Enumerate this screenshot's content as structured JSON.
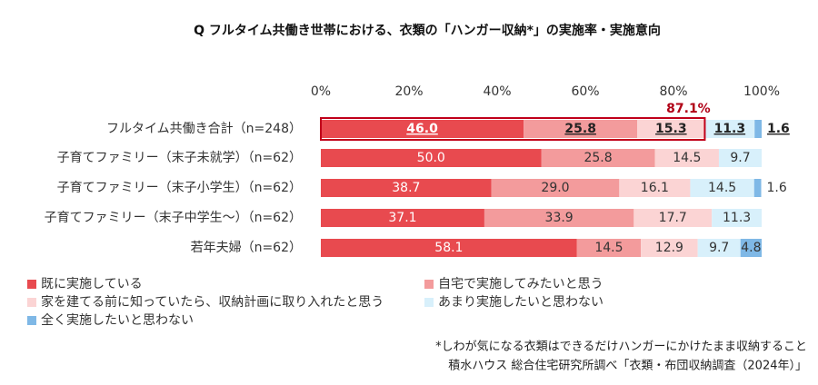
{
  "chart_data": {
    "type": "stacked-bar-horizontal",
    "title": "Q フルタイム共働き世帯における、衣類の「ハンガー収納*」の実施率・実施意向",
    "categories": [
      "フルタイム共働き合計（n=248）",
      "子育てファミリー（末子未就学）（n=62）",
      "子育てファミリー（末子小学生）（n=62）",
      "子育てファミリー（末子中学生～）（n=62）",
      "若年夫婦（n=62）"
    ],
    "series": [
      {
        "name": "既に実施している",
        "color": "#e84a4f",
        "values": [
          46.0,
          50.0,
          38.7,
          37.1,
          58.1
        ],
        "value_labels": [
          "46.0",
          "50.0",
          "38.7",
          "37.1",
          "58.1"
        ]
      },
      {
        "name": "自宅で実施してみたいと思う",
        "color": "#f39b9c",
        "values": [
          25.8,
          25.8,
          29.0,
          33.9,
          14.5
        ],
        "value_labels": [
          "25.8",
          "25.8",
          "29.0",
          "33.9",
          "14.5"
        ]
      },
      {
        "name": "家を建てる前に知っていたら、収納計画に取り入れたと思う",
        "color": "#fbd4d4",
        "values": [
          15.3,
          14.5,
          16.1,
          17.7,
          12.9
        ],
        "value_labels": [
          "15.3",
          "14.5",
          "16.1",
          "17.7",
          "12.9"
        ]
      },
      {
        "name": "あまり実施したいと思わない",
        "color": "#d8f0fb",
        "values": [
          11.3,
          9.7,
          14.5,
          11.3,
          9.7
        ],
        "value_labels": [
          "11.3",
          "9.7",
          "14.5",
          "11.3",
          "9.7"
        ]
      },
      {
        "name": "全く実施したいと思わない",
        "color": "#7fb8e6",
        "values": [
          1.6,
          null,
          1.6,
          null,
          4.8
        ],
        "value_labels": [
          "1.6",
          null,
          "1.6",
          null,
          "4.8"
        ]
      }
    ],
    "xlim": [
      0,
      100
    ],
    "xticks": [
      {
        "value": 0,
        "label": "0%"
      },
      {
        "value": 20,
        "label": "20%"
      },
      {
        "value": 40,
        "label": "40%"
      },
      {
        "value": 60,
        "label": "60%"
      },
      {
        "value": 80,
        "label": "80%"
      },
      {
        "value": 100,
        "label": "100%"
      }
    ],
    "total_annotation": {
      "value": 87.1,
      "label": "87.1%"
    },
    "notes": [
      "*しわが気になる衣類はできるだけハンガーにかけたまま収納すること",
      "積水ハウス 総合住宅研究所調べ「衣類・布団収納調査（2024年）」"
    ]
  }
}
